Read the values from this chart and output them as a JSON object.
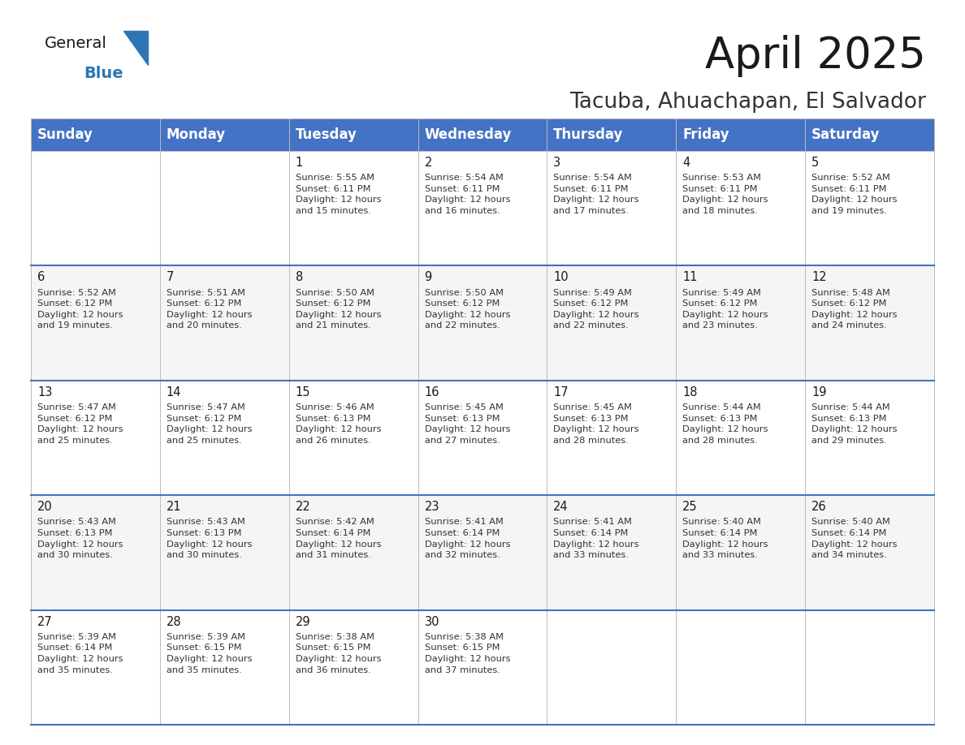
{
  "title": "April 2025",
  "subtitle": "Tacuba, Ahuachapan, El Salvador",
  "header_bg": "#4472C4",
  "header_text": "#FFFFFF",
  "row_bg_odd": "#FFFFFF",
  "row_bg_even": "#F5F5F5",
  "week_divider_color": "#4472C4",
  "cell_border_color": "#CCCCCC",
  "day_headers": [
    "Sunday",
    "Monday",
    "Tuesday",
    "Wednesday",
    "Thursday",
    "Friday",
    "Saturday"
  ],
  "weeks": [
    [
      {
        "day": "",
        "info": ""
      },
      {
        "day": "",
        "info": ""
      },
      {
        "day": "1",
        "info": "Sunrise: 5:55 AM\nSunset: 6:11 PM\nDaylight: 12 hours\nand 15 minutes."
      },
      {
        "day": "2",
        "info": "Sunrise: 5:54 AM\nSunset: 6:11 PM\nDaylight: 12 hours\nand 16 minutes."
      },
      {
        "day": "3",
        "info": "Sunrise: 5:54 AM\nSunset: 6:11 PM\nDaylight: 12 hours\nand 17 minutes."
      },
      {
        "day": "4",
        "info": "Sunrise: 5:53 AM\nSunset: 6:11 PM\nDaylight: 12 hours\nand 18 minutes."
      },
      {
        "day": "5",
        "info": "Sunrise: 5:52 AM\nSunset: 6:11 PM\nDaylight: 12 hours\nand 19 minutes."
      }
    ],
    [
      {
        "day": "6",
        "info": "Sunrise: 5:52 AM\nSunset: 6:12 PM\nDaylight: 12 hours\nand 19 minutes."
      },
      {
        "day": "7",
        "info": "Sunrise: 5:51 AM\nSunset: 6:12 PM\nDaylight: 12 hours\nand 20 minutes."
      },
      {
        "day": "8",
        "info": "Sunrise: 5:50 AM\nSunset: 6:12 PM\nDaylight: 12 hours\nand 21 minutes."
      },
      {
        "day": "9",
        "info": "Sunrise: 5:50 AM\nSunset: 6:12 PM\nDaylight: 12 hours\nand 22 minutes."
      },
      {
        "day": "10",
        "info": "Sunrise: 5:49 AM\nSunset: 6:12 PM\nDaylight: 12 hours\nand 22 minutes."
      },
      {
        "day": "11",
        "info": "Sunrise: 5:49 AM\nSunset: 6:12 PM\nDaylight: 12 hours\nand 23 minutes."
      },
      {
        "day": "12",
        "info": "Sunrise: 5:48 AM\nSunset: 6:12 PM\nDaylight: 12 hours\nand 24 minutes."
      }
    ],
    [
      {
        "day": "13",
        "info": "Sunrise: 5:47 AM\nSunset: 6:12 PM\nDaylight: 12 hours\nand 25 minutes."
      },
      {
        "day": "14",
        "info": "Sunrise: 5:47 AM\nSunset: 6:12 PM\nDaylight: 12 hours\nand 25 minutes."
      },
      {
        "day": "15",
        "info": "Sunrise: 5:46 AM\nSunset: 6:13 PM\nDaylight: 12 hours\nand 26 minutes."
      },
      {
        "day": "16",
        "info": "Sunrise: 5:45 AM\nSunset: 6:13 PM\nDaylight: 12 hours\nand 27 minutes."
      },
      {
        "day": "17",
        "info": "Sunrise: 5:45 AM\nSunset: 6:13 PM\nDaylight: 12 hours\nand 28 minutes."
      },
      {
        "day": "18",
        "info": "Sunrise: 5:44 AM\nSunset: 6:13 PM\nDaylight: 12 hours\nand 28 minutes."
      },
      {
        "day": "19",
        "info": "Sunrise: 5:44 AM\nSunset: 6:13 PM\nDaylight: 12 hours\nand 29 minutes."
      }
    ],
    [
      {
        "day": "20",
        "info": "Sunrise: 5:43 AM\nSunset: 6:13 PM\nDaylight: 12 hours\nand 30 minutes."
      },
      {
        "day": "21",
        "info": "Sunrise: 5:43 AM\nSunset: 6:13 PM\nDaylight: 12 hours\nand 30 minutes."
      },
      {
        "day": "22",
        "info": "Sunrise: 5:42 AM\nSunset: 6:14 PM\nDaylight: 12 hours\nand 31 minutes."
      },
      {
        "day": "23",
        "info": "Sunrise: 5:41 AM\nSunset: 6:14 PM\nDaylight: 12 hours\nand 32 minutes."
      },
      {
        "day": "24",
        "info": "Sunrise: 5:41 AM\nSunset: 6:14 PM\nDaylight: 12 hours\nand 33 minutes."
      },
      {
        "day": "25",
        "info": "Sunrise: 5:40 AM\nSunset: 6:14 PM\nDaylight: 12 hours\nand 33 minutes."
      },
      {
        "day": "26",
        "info": "Sunrise: 5:40 AM\nSunset: 6:14 PM\nDaylight: 12 hours\nand 34 minutes."
      }
    ],
    [
      {
        "day": "27",
        "info": "Sunrise: 5:39 AM\nSunset: 6:14 PM\nDaylight: 12 hours\nand 35 minutes."
      },
      {
        "day": "28",
        "info": "Sunrise: 5:39 AM\nSunset: 6:15 PM\nDaylight: 12 hours\nand 35 minutes."
      },
      {
        "day": "29",
        "info": "Sunrise: 5:38 AM\nSunset: 6:15 PM\nDaylight: 12 hours\nand 36 minutes."
      },
      {
        "day": "30",
        "info": "Sunrise: 5:38 AM\nSunset: 6:15 PM\nDaylight: 12 hours\nand 37 minutes."
      },
      {
        "day": "",
        "info": ""
      },
      {
        "day": "",
        "info": ""
      },
      {
        "day": "",
        "info": ""
      }
    ]
  ],
  "logo_general_color": "#1a1a1a",
  "logo_blue_color": "#2E75B6",
  "logo_triangle_color": "#2E75B6",
  "title_fontsize": 38,
  "subtitle_fontsize": 19,
  "header_fontsize": 12,
  "day_number_fontsize": 10.5,
  "info_fontsize": 8.2
}
